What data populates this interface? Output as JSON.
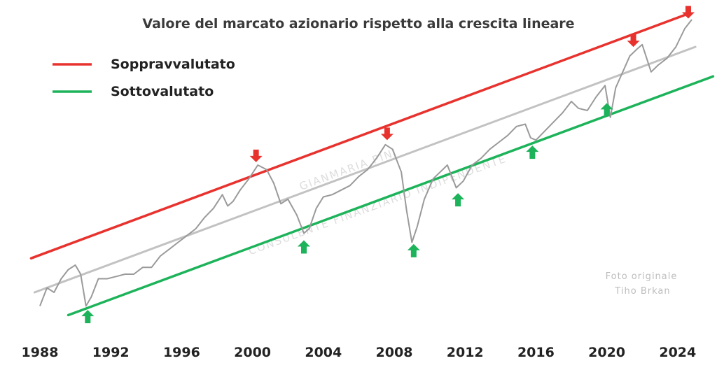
{
  "chart_data": {
    "type": "line",
    "title": "Valore del marcato azionario rispetto alla crescita lineare",
    "xlabel": "",
    "ylabel": "",
    "x_ticks": [
      1988,
      1992,
      1996,
      2000,
      2004,
      2008,
      2012,
      2016,
      2020,
      2024
    ],
    "xlim": [
      1987,
      2026
    ],
    "legend": {
      "placement": "top-left",
      "entries": [
        {
          "label": "Soppravvalutato",
          "color": "#e8322e"
        },
        {
          "label": "Sottovalutato",
          "color": "#1db35a"
        }
      ]
    },
    "series": [
      {
        "role": "market",
        "color": "#9a9a9a",
        "points": [
          [
            1988.0,
            0.1
          ],
          [
            1988.4,
            0.18
          ],
          [
            1988.8,
            0.16
          ],
          [
            1989.2,
            0.22
          ],
          [
            1989.6,
            0.26
          ],
          [
            1990.0,
            0.28
          ],
          [
            1990.3,
            0.24
          ],
          [
            1990.6,
            0.1
          ],
          [
            1990.9,
            0.14
          ],
          [
            1991.3,
            0.22
          ],
          [
            1991.8,
            0.22
          ],
          [
            1992.3,
            0.23
          ],
          [
            1992.8,
            0.24
          ],
          [
            1993.3,
            0.24
          ],
          [
            1993.8,
            0.27
          ],
          [
            1994.3,
            0.27
          ],
          [
            1994.8,
            0.32
          ],
          [
            1995.3,
            0.35
          ],
          [
            1995.8,
            0.38
          ],
          [
            1996.3,
            0.41
          ],
          [
            1996.8,
            0.44
          ],
          [
            1997.3,
            0.49
          ],
          [
            1997.8,
            0.53
          ],
          [
            1998.3,
            0.59
          ],
          [
            1998.6,
            0.54
          ],
          [
            1998.9,
            0.56
          ],
          [
            1999.3,
            0.61
          ],
          [
            1999.8,
            0.66
          ],
          [
            2000.3,
            0.72
          ],
          [
            2000.8,
            0.7
          ],
          [
            2001.2,
            0.64
          ],
          [
            2001.6,
            0.55
          ],
          [
            2002.0,
            0.57
          ],
          [
            2002.5,
            0.5
          ],
          [
            2002.9,
            0.42
          ],
          [
            2003.2,
            0.44
          ],
          [
            2003.6,
            0.53
          ],
          [
            2004.0,
            0.58
          ],
          [
            2004.5,
            0.59
          ],
          [
            2005.0,
            0.61
          ],
          [
            2005.5,
            0.63
          ],
          [
            2006.0,
            0.67
          ],
          [
            2006.5,
            0.7
          ],
          [
            2007.0,
            0.75
          ],
          [
            2007.5,
            0.81
          ],
          [
            2007.9,
            0.79
          ],
          [
            2008.4,
            0.69
          ],
          [
            2008.7,
            0.52
          ],
          [
            2009.0,
            0.38
          ],
          [
            2009.3,
            0.45
          ],
          [
            2009.7,
            0.57
          ],
          [
            2010.2,
            0.66
          ],
          [
            2010.6,
            0.69
          ],
          [
            2011.0,
            0.72
          ],
          [
            2011.5,
            0.62
          ],
          [
            2011.9,
            0.65
          ],
          [
            2012.4,
            0.72
          ],
          [
            2012.9,
            0.75
          ],
          [
            2013.4,
            0.79
          ],
          [
            2013.9,
            0.82
          ],
          [
            2014.4,
            0.85
          ],
          [
            2014.9,
            0.89
          ],
          [
            2015.4,
            0.9
          ],
          [
            2015.7,
            0.84
          ],
          [
            2016.0,
            0.83
          ],
          [
            2016.5,
            0.87
          ],
          [
            2017.0,
            0.91
          ],
          [
            2017.5,
            0.95
          ],
          [
            2018.0,
            1.0
          ],
          [
            2018.4,
            0.97
          ],
          [
            2018.9,
            0.96
          ],
          [
            2019.4,
            1.02
          ],
          [
            2019.9,
            1.07
          ],
          [
            2020.2,
            0.93
          ],
          [
            2020.5,
            1.06
          ],
          [
            2020.9,
            1.13
          ],
          [
            2021.3,
            1.2
          ],
          [
            2021.7,
            1.23
          ],
          [
            2022.0,
            1.25
          ],
          [
            2022.5,
            1.13
          ],
          [
            2022.9,
            1.16
          ],
          [
            2023.4,
            1.19
          ],
          [
            2023.9,
            1.24
          ],
          [
            2024.4,
            1.32
          ],
          [
            2024.8,
            1.36
          ]
        ]
      },
      {
        "role": "trend",
        "color": "#c2c2c2",
        "points": [
          [
            1987.7,
            0.16
          ],
          [
            2025.0,
            1.24
          ]
        ]
      },
      {
        "role": "overvalued",
        "color": "#e8322e",
        "points": [
          [
            1987.5,
            0.31
          ],
          [
            2024.4,
            1.38
          ]
        ]
      },
      {
        "role": "undervalued",
        "color": "#1db35a",
        "points": [
          [
            1989.6,
            0.06
          ],
          [
            2026.0,
            1.11
          ]
        ]
      }
    ],
    "markers": {
      "overvalued_down_arrows": [
        2000.2,
        2007.6,
        2021.5,
        2024.6
      ],
      "undervalued_up_arrows": [
        1990.7,
        2002.9,
        2009.1,
        2011.6,
        2015.8,
        2020.0
      ]
    }
  },
  "credit": [
    "Foto originale",
    "Tiho Brkan"
  ],
  "watermark": [
    "GIANMARIA PINI",
    "CONSULENTE FINANZIARIO INDIPENDENTE"
  ]
}
